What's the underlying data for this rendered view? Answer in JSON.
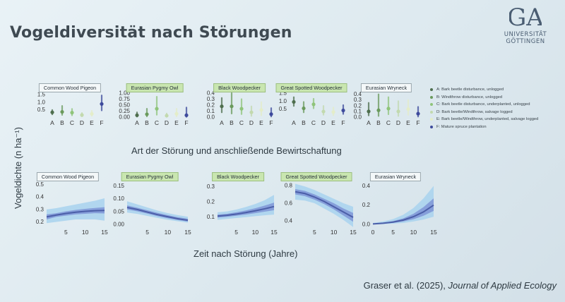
{
  "slide": {
    "title": "Vogeldiversität nach Störungen",
    "y_axis_title": "Vogeldichte (n ha⁻¹)",
    "x_axis_title_top": "Art der Störung und anschließende Bewirtschaftung",
    "x_axis_title_bottom": "Zeit nach Störung (Jahre)",
    "citation_authors": "Graser et al. (2025), ",
    "citation_journal": "Journal of Applied Ecology"
  },
  "logo": {
    "mark": "GA",
    "line1": "UNIVERSITÄT",
    "line2": "GÖTTINGEN",
    "color": "#4a5d72"
  },
  "colors": {
    "category": [
      "#4e6e4d",
      "#6a9a5c",
      "#8fc47a",
      "#c2d9ae",
      "#e4edc9",
      "#3d4a9c"
    ],
    "line": "#4b5ea8",
    "ci_inner": "#7f95d6",
    "ci_outer": "#a8d2ef",
    "green_title": "#c9e6b0"
  },
  "legend": [
    "A: Bark beetle disturbance, unlogged",
    "B: Windthrow disturbance, unlogged",
    "C: Bark beetle disturbance, underplanted, unlogged",
    "D: Bark beetle/Windthrow, salvage logged",
    "E: Bark beetle/Windthrow, underplanted, salvage logged",
    "F: Mature spruce plantation"
  ],
  "chart_data": [
    {
      "type": "scatter",
      "title": "Common Wood Pigeon",
      "title_style": "plain",
      "categories": [
        "A",
        "B",
        "C",
        "D",
        "E",
        "F"
      ],
      "values": [
        0.32,
        0.35,
        0.3,
        0.14,
        0.22,
        0.88
      ],
      "ci": [
        [
          0.18,
          0.48
        ],
        [
          0.15,
          0.75
        ],
        [
          0.12,
          0.55
        ],
        [
          0.05,
          0.28
        ],
        [
          0.08,
          0.42
        ],
        [
          0.45,
          1.45
        ]
      ],
      "ylim": [
        0,
        1.6
      ],
      "yticks": [
        "0.5",
        "1.0",
        "1.5"
      ],
      "ytick_values": [
        0.5,
        1.0,
        1.5
      ]
    },
    {
      "type": "scatter",
      "title": "Eurasian Pygmy Owl",
      "title_style": "green",
      "categories": [
        "A",
        "B",
        "C",
        "D",
        "E",
        "F"
      ],
      "values": [
        0.08,
        0.12,
        0.35,
        0.06,
        0.14,
        0.08
      ],
      "ci": [
        [
          0.02,
          0.2
        ],
        [
          0.03,
          0.35
        ],
        [
          0.1,
          0.85
        ],
        [
          0.01,
          0.15
        ],
        [
          0.03,
          0.35
        ],
        [
          0.01,
          0.4
        ]
      ],
      "ylim": [
        0,
        1.0
      ],
      "yticks": [
        "0.00",
        "0.25",
        "0.50",
        "0.75",
        "1.00"
      ],
      "ytick_values": [
        0,
        0.25,
        0.5,
        0.75,
        1.0
      ]
    },
    {
      "type": "scatter",
      "title": "Black Woodpecker",
      "title_style": "green",
      "categories": [
        "A",
        "B",
        "C",
        "D",
        "E",
        "F"
      ],
      "values": [
        0.18,
        0.18,
        0.14,
        0.08,
        0.12,
        0.05
      ],
      "ci": [
        [
          0.08,
          0.32
        ],
        [
          0.06,
          0.4
        ],
        [
          0.05,
          0.3
        ],
        [
          0.02,
          0.18
        ],
        [
          0.03,
          0.25
        ],
        [
          0.01,
          0.15
        ]
      ],
      "ylim": [
        0,
        0.4
      ],
      "yticks": [
        "0.0",
        "0.1",
        "0.2",
        "0.3",
        "0.4"
      ],
      "ytick_values": [
        0,
        0.1,
        0.2,
        0.3,
        0.4
      ]
    },
    {
      "type": "scatter",
      "title": "Great Spotted Woodpecker",
      "title_style": "green",
      "categories": [
        "A",
        "B",
        "C",
        "D",
        "E",
        "F"
      ],
      "values": [
        0.95,
        0.55,
        0.8,
        0.35,
        0.32,
        0.42
      ],
      "ci": [
        [
          0.7,
          1.25
        ],
        [
          0.3,
          0.95
        ],
        [
          0.55,
          1.15
        ],
        [
          0.15,
          0.7
        ],
        [
          0.12,
          0.6
        ],
        [
          0.2,
          0.75
        ]
      ],
      "ylim": [
        0,
        1.5
      ],
      "yticks": [
        "0.5",
        "1.0",
        "1.5"
      ],
      "ytick_values": [
        0.5,
        1.0,
        1.5
      ]
    },
    {
      "type": "scatter",
      "title": "Eurasian Wryneck",
      "title_style": "plain",
      "categories": [
        "A",
        "B",
        "C",
        "D",
        "E",
        "F"
      ],
      "values": [
        0.1,
        0.12,
        0.15,
        0.1,
        0.14,
        0.06
      ],
      "ci": [
        [
          0.03,
          0.25
        ],
        [
          0.02,
          0.4
        ],
        [
          0.05,
          0.35
        ],
        [
          0.02,
          0.28
        ],
        [
          0.04,
          0.3
        ],
        [
          0.01,
          0.18
        ]
      ],
      "ylim": [
        0,
        0.42
      ],
      "yticks": [
        "0.0",
        "0.1",
        "0.2",
        "0.3",
        "0.4"
      ],
      "ytick_values": [
        0,
        0.1,
        0.2,
        0.3,
        0.4
      ]
    },
    {
      "type": "line",
      "title": "Common Wood Pigeon",
      "title_style": "plain",
      "x": [
        0,
        2.5,
        5,
        7.5,
        10,
        12.5,
        15
      ],
      "values": [
        0.24,
        0.255,
        0.268,
        0.278,
        0.285,
        0.29,
        0.292
      ],
      "ci_inner": [
        [
          0.22,
          0.26
        ],
        [
          0.24,
          0.27
        ],
        [
          0.25,
          0.285
        ],
        [
          0.26,
          0.296
        ],
        [
          0.265,
          0.305
        ],
        [
          0.27,
          0.312
        ],
        [
          0.268,
          0.318
        ]
      ],
      "ci_outer": [
        [
          0.19,
          0.3
        ],
        [
          0.2,
          0.31
        ],
        [
          0.21,
          0.325
        ],
        [
          0.22,
          0.34
        ],
        [
          0.22,
          0.355
        ],
        [
          0.22,
          0.37
        ],
        [
          0.21,
          0.39
        ]
      ],
      "xlim": [
        0,
        15
      ],
      "ylim": [
        0.18,
        0.52
      ],
      "xticks": [
        "5",
        "10",
        "15"
      ],
      "xtick_values": [
        5,
        10,
        15
      ],
      "yticks": [
        "0.2",
        "0.3",
        "0.4",
        "0.5"
      ],
      "ytick_values": [
        0.2,
        0.3,
        0.4,
        0.5
      ]
    },
    {
      "type": "line",
      "title": "Eurasian Pygmy Owl",
      "title_style": "green",
      "x": [
        0,
        2.5,
        5,
        7.5,
        10,
        12.5,
        15
      ],
      "values": [
        0.066,
        0.058,
        0.048,
        0.038,
        0.03,
        0.022,
        0.016
      ],
      "ci_inner": [
        [
          0.058,
          0.074
        ],
        [
          0.051,
          0.065
        ],
        [
          0.042,
          0.055
        ],
        [
          0.032,
          0.045
        ],
        [
          0.024,
          0.036
        ],
        [
          0.017,
          0.028
        ],
        [
          0.011,
          0.022
        ]
      ],
      "ci_outer": [
        [
          0.046,
          0.09
        ],
        [
          0.041,
          0.078
        ],
        [
          0.033,
          0.066
        ],
        [
          0.025,
          0.054
        ],
        [
          0.018,
          0.044
        ],
        [
          0.012,
          0.036
        ],
        [
          0.007,
          0.03
        ]
      ],
      "xlim": [
        0,
        15
      ],
      "ylim": [
        0,
        0.165
      ],
      "xticks": [
        "5",
        "10",
        "15"
      ],
      "xtick_values": [
        5,
        10,
        15
      ],
      "yticks": [
        "0.00",
        "0.05",
        "0.10",
        "0.15"
      ],
      "ytick_values": [
        0,
        0.05,
        0.1,
        0.15
      ]
    },
    {
      "type": "line",
      "title": "Black Woodpecker",
      "title_style": "green",
      "x": [
        0,
        2.5,
        5,
        7.5,
        10,
        12.5,
        15
      ],
      "values": [
        0.105,
        0.11,
        0.118,
        0.128,
        0.14,
        0.153,
        0.168
      ],
      "ci_inner": [
        [
          0.095,
          0.115
        ],
        [
          0.1,
          0.12
        ],
        [
          0.107,
          0.13
        ],
        [
          0.115,
          0.142
        ],
        [
          0.124,
          0.157
        ],
        [
          0.134,
          0.174
        ],
        [
          0.144,
          0.194
        ]
      ],
      "ci_outer": [
        [
          0.08,
          0.13
        ],
        [
          0.086,
          0.136
        ],
        [
          0.092,
          0.148
        ],
        [
          0.098,
          0.165
        ],
        [
          0.104,
          0.185
        ],
        [
          0.11,
          0.21
        ],
        [
          0.115,
          0.245
        ]
      ],
      "xlim": [
        0,
        15
      ],
      "ylim": [
        0.05,
        0.33
      ],
      "xticks": [
        "5",
        "10",
        "15"
      ],
      "xtick_values": [
        5,
        10,
        15
      ],
      "yticks": [
        "0.1",
        "0.2",
        "0.3"
      ],
      "ytick_values": [
        0.1,
        0.2,
        0.3
      ]
    },
    {
      "type": "line",
      "title": "Great Spotted Woodpecker",
      "title_style": "green",
      "x": [
        0,
        2.5,
        5,
        7.5,
        10,
        12.5,
        15
      ],
      "values": [
        0.73,
        0.71,
        0.67,
        0.62,
        0.56,
        0.5,
        0.44
      ],
      "ci_inner": [
        [
          0.7,
          0.76
        ],
        [
          0.68,
          0.74
        ],
        [
          0.64,
          0.7
        ],
        [
          0.59,
          0.65
        ],
        [
          0.53,
          0.6
        ],
        [
          0.46,
          0.54
        ],
        [
          0.39,
          0.49
        ]
      ],
      "ci_outer": [
        [
          0.64,
          0.82
        ],
        [
          0.63,
          0.79
        ],
        [
          0.6,
          0.75
        ],
        [
          0.54,
          0.7
        ],
        [
          0.48,
          0.65
        ],
        [
          0.41,
          0.6
        ],
        [
          0.33,
          0.56
        ]
      ],
      "xlim": [
        0,
        15
      ],
      "ylim": [
        0.36,
        0.84
      ],
      "xticks": [
        "5",
        "10",
        "15"
      ],
      "xtick_values": [
        5,
        10,
        15
      ],
      "yticks": [
        "0.4",
        "0.6",
        "0.8"
      ],
      "ytick_values": [
        0.4,
        0.6,
        0.8
      ]
    },
    {
      "type": "line",
      "title": "Eurasian Wryneck",
      "title_style": "plain",
      "x": [
        0,
        2.5,
        5,
        7.5,
        10,
        12.5,
        15
      ],
      "values": [
        0.005,
        0.012,
        0.024,
        0.045,
        0.08,
        0.13,
        0.2
      ],
      "ci_inner": [
        [
          0.003,
          0.008
        ],
        [
          0.008,
          0.017
        ],
        [
          0.016,
          0.034
        ],
        [
          0.03,
          0.062
        ],
        [
          0.053,
          0.11
        ],
        [
          0.09,
          0.18
        ],
        [
          0.14,
          0.27
        ]
      ],
      "ci_outer": [
        [
          0.001,
          0.015
        ],
        [
          0.003,
          0.03
        ],
        [
          0.008,
          0.055
        ],
        [
          0.015,
          0.1
        ],
        [
          0.03,
          0.17
        ],
        [
          0.05,
          0.27
        ],
        [
          0.08,
          0.4
        ]
      ],
      "xlim": [
        0,
        15
      ],
      "ylim": [
        0,
        0.44
      ],
      "xticks": [
        "0",
        "5",
        "10",
        "15"
      ],
      "xtick_values": [
        0,
        5,
        10,
        15
      ],
      "yticks": [
        "0.0",
        "0.2",
        "0.4"
      ],
      "ytick_values": [
        0,
        0.2,
        0.4
      ]
    }
  ]
}
